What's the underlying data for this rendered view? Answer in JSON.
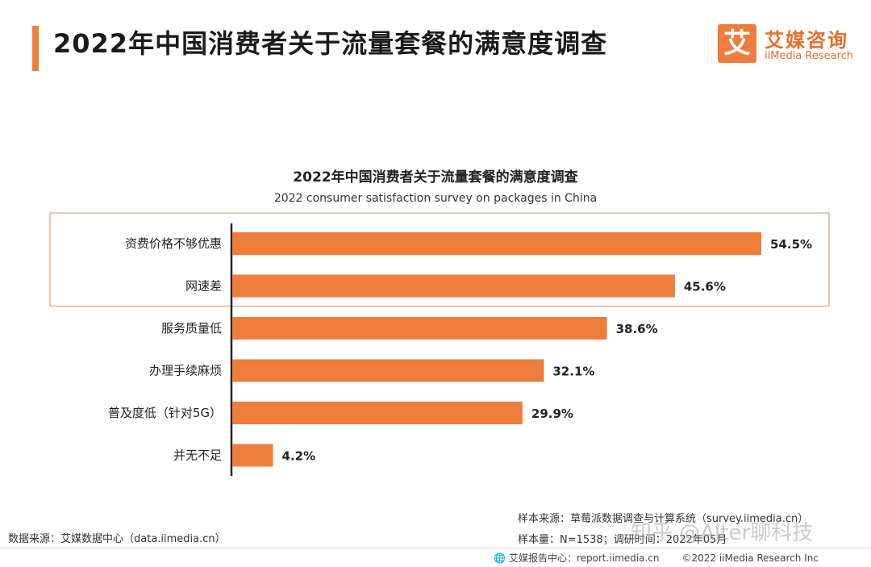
{
  "header": {
    "title": "2022年中国消费者关于流量套餐的满意度调查",
    "logo_mark": "艾",
    "logo_cn": "艾媒咨询",
    "logo_en": "iiMedia Research"
  },
  "chart_data": {
    "type": "bar",
    "orientation": "horizontal",
    "title": "2022年中国消费者关于流量套餐的满意度调查",
    "subtitle": "2022 consumer satisfaction survey on packages in China",
    "categories": [
      "资费价格不够优惠",
      "网速差",
      "服务质量低",
      "办理手续麻烦",
      "普及度低（针对5G）",
      "并无不足"
    ],
    "values": [
      54.5,
      45.6,
      38.6,
      32.1,
      29.9,
      4.2
    ],
    "value_labels": [
      "54.5%",
      "45.6%",
      "38.6%",
      "32.1%",
      "29.9%",
      "4.2%"
    ],
    "unit": "%",
    "highlighted_categories": [
      "资费价格不够优惠",
      "网速差"
    ],
    "bar_color": "#ef7d3c",
    "highlight_border_color": "#e0a080",
    "grid": false,
    "legend": "none"
  },
  "footer": {
    "data_source": "数据来源：艾媒数据中心（data.iimedia.cn）",
    "sample_source": "样本来源：草莓派数据调查与计算系统（survey.iimedia.cn）",
    "sample_size": "样本量：N=1538；调研时间：2022年05月",
    "report_center": "艾媒报告中心：report.iimedia.cn",
    "copyright": "©2022  iiMedia Research  Inc"
  },
  "watermark": "知乎 @Alter聊科技",
  "colors": {
    "accent": "#ef7d3c",
    "text": "#222222"
  }
}
